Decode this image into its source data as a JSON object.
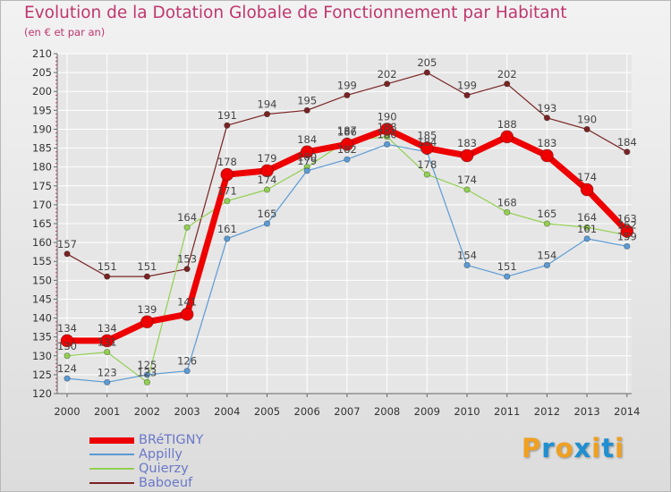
{
  "header": {
    "title": "Evolution de la Dotation Globale de Fonctionnement par Habitant",
    "subtitle": "(en € et par an)"
  },
  "logo": {
    "letters": [
      "P",
      "r",
      "o",
      "x",
      "i",
      "t",
      "i"
    ]
  },
  "colors": {
    "title": "#c0366e",
    "legend_text": "#6a78c8",
    "axis": "#666666",
    "grid": "#ffffff",
    "bretigny": "#ee0000",
    "appilly": "#5b9bd5",
    "quierzy": "#92d050",
    "baboeuf": "#7a2323",
    "logo": [
      "#f0a020",
      "#1e8fd0",
      "#f0a020",
      "#1e8fd0",
      "#f0a020",
      "#1e8fd0",
      "#f0a020"
    ]
  },
  "chart_data": {
    "type": "line",
    "title": "Evolution de la Dotation Globale de Fonctionnement par Habitant",
    "subtitle": "(en € et par an)",
    "xlabel": "",
    "ylabel": "",
    "ylim": [
      120,
      210
    ],
    "yticks": [
      120,
      125,
      130,
      135,
      140,
      145,
      150,
      155,
      160,
      165,
      170,
      175,
      180,
      185,
      190,
      195,
      200,
      205,
      210
    ],
    "categories": [
      "2000",
      "2001",
      "2002",
      "2003",
      "2004",
      "2005",
      "2006",
      "2007",
      "2008",
      "2009",
      "2010",
      "2011",
      "2012",
      "2013",
      "2014"
    ],
    "legend_position": "bottom-left",
    "grid": true,
    "series": [
      {
        "name": "BRéTIGNY",
        "key": "bretigny",
        "values": [
          134,
          134,
          139,
          141,
          178,
          179,
          184,
          186,
          190,
          185,
          183,
          188,
          183,
          174,
          163
        ]
      },
      {
        "name": "Appilly",
        "key": "appilly",
        "values": [
          124,
          123,
          125,
          126,
          161,
          165,
          179,
          182,
          186,
          184,
          154,
          151,
          154,
          161,
          159
        ]
      },
      {
        "name": "Quierzy",
        "key": "quierzy",
        "values": [
          130,
          131,
          123,
          164,
          171,
          174,
          180,
          187,
          188,
          178,
          174,
          168,
          165,
          164,
          162
        ]
      },
      {
        "name": "Baboeuf",
        "key": "baboeuf",
        "values": [
          157,
          151,
          151,
          153,
          191,
          194,
          195,
          199,
          202,
          205,
          199,
          202,
          193,
          190,
          184
        ]
      }
    ]
  }
}
